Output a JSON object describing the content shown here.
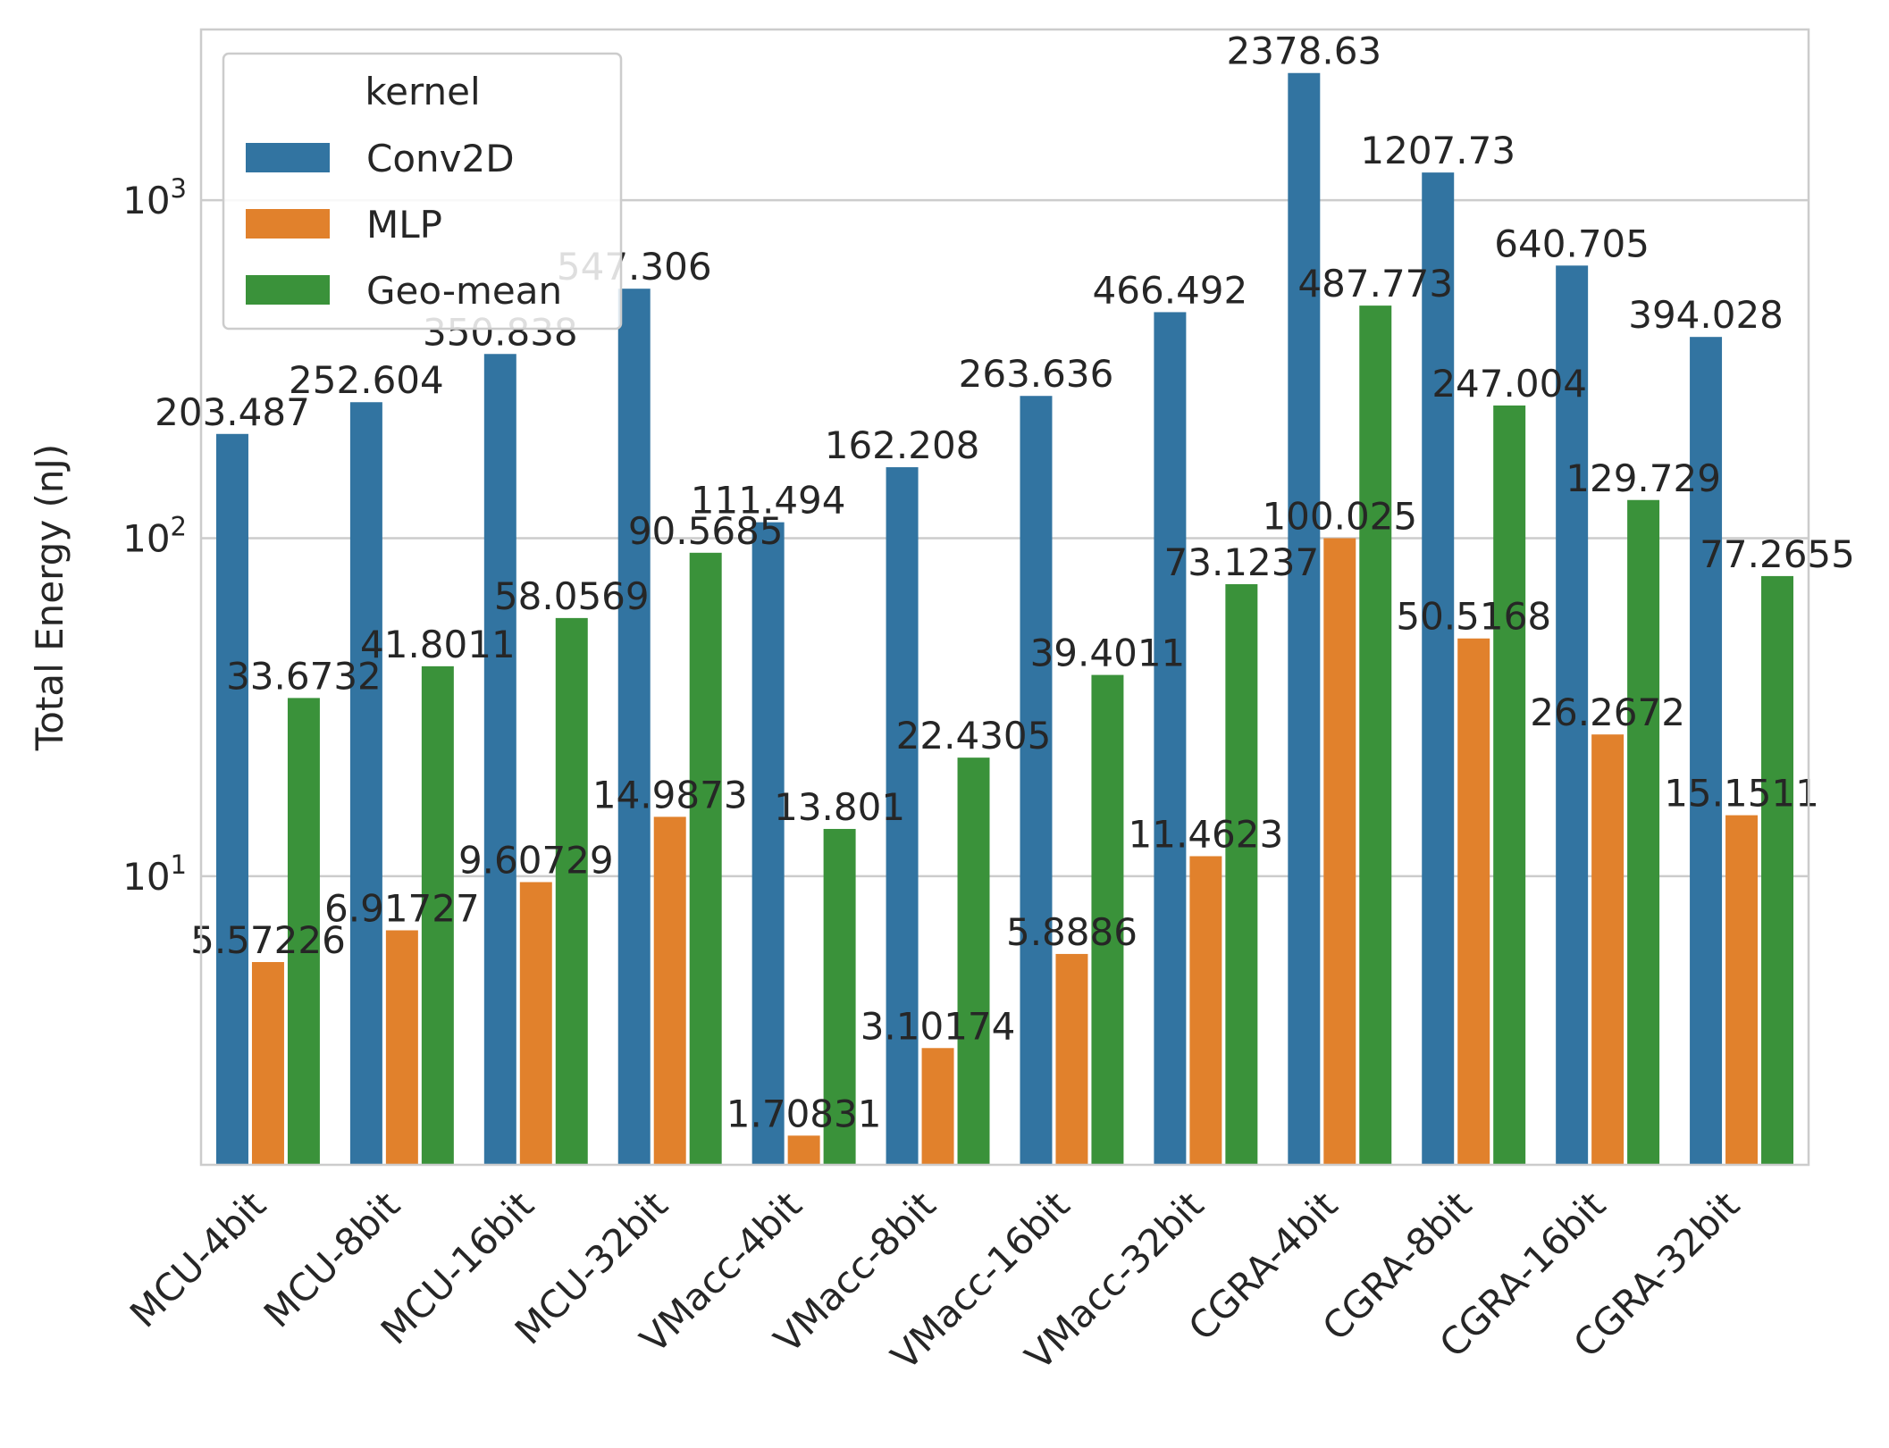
{
  "chart_data": {
    "type": "bar",
    "ylabel": "Total Energy (nJ)",
    "yscale": "log",
    "ylim": [
      1.4,
      3200
    ],
    "yticks": [
      {
        "value": 10,
        "base": "10",
        "exp": "1"
      },
      {
        "value": 100,
        "base": "10",
        "exp": "2"
      },
      {
        "value": 1000,
        "base": "10",
        "exp": "3"
      }
    ],
    "grid": true,
    "legend": {
      "title": "kernel",
      "placement": "top-left"
    },
    "categories": [
      "MCU-4bit",
      "MCU-8bit",
      "MCU-16bit",
      "MCU-32bit",
      "VMacc-4bit",
      "VMacc-8bit",
      "VMacc-16bit",
      "VMacc-32bit",
      "CGRA-4bit",
      "CGRA-8bit",
      "CGRA-16bit",
      "CGRA-32bit"
    ],
    "series": [
      {
        "name": "Conv2D",
        "color": "#3274a1",
        "values": [
          203.487,
          252.604,
          350.838,
          547.306,
          111.494,
          162.208,
          263.636,
          466.492,
          2378.63,
          1207.73,
          640.705,
          394.028
        ],
        "labels": [
          "203.487",
          "252.604",
          "350.838",
          "547.306",
          "111.494",
          "162.208",
          "263.636",
          "466.492",
          "2378.63",
          "1207.73",
          "640.705",
          "394.028"
        ]
      },
      {
        "name": "MLP",
        "color": "#e1812c",
        "values": [
          5.57226,
          6.91727,
          9.60729,
          14.9873,
          1.70831,
          3.10174,
          5.8886,
          11.4623,
          100.025,
          50.5168,
          26.2672,
          15.1511
        ],
        "labels": [
          "5.57226",
          "6.91727",
          "9.60729",
          "14.9873",
          "1.70831",
          "3.10174",
          "5.8886",
          "11.4623",
          "100.025",
          "50.5168",
          "26.2672",
          "15.1511"
        ]
      },
      {
        "name": "Geo-mean",
        "color": "#3a923a",
        "values": [
          33.6732,
          41.8011,
          58.0569,
          90.5685,
          13.801,
          22.4305,
          39.4011,
          73.1237,
          487.773,
          247.004,
          129.729,
          77.2655
        ],
        "labels": [
          "33.6732",
          "41.8011",
          "58.0569",
          "90.5685",
          "13.801",
          "22.4305",
          "39.4011",
          "73.1237",
          "487.773",
          "247.004",
          "129.729",
          "77.2655"
        ]
      }
    ]
  }
}
